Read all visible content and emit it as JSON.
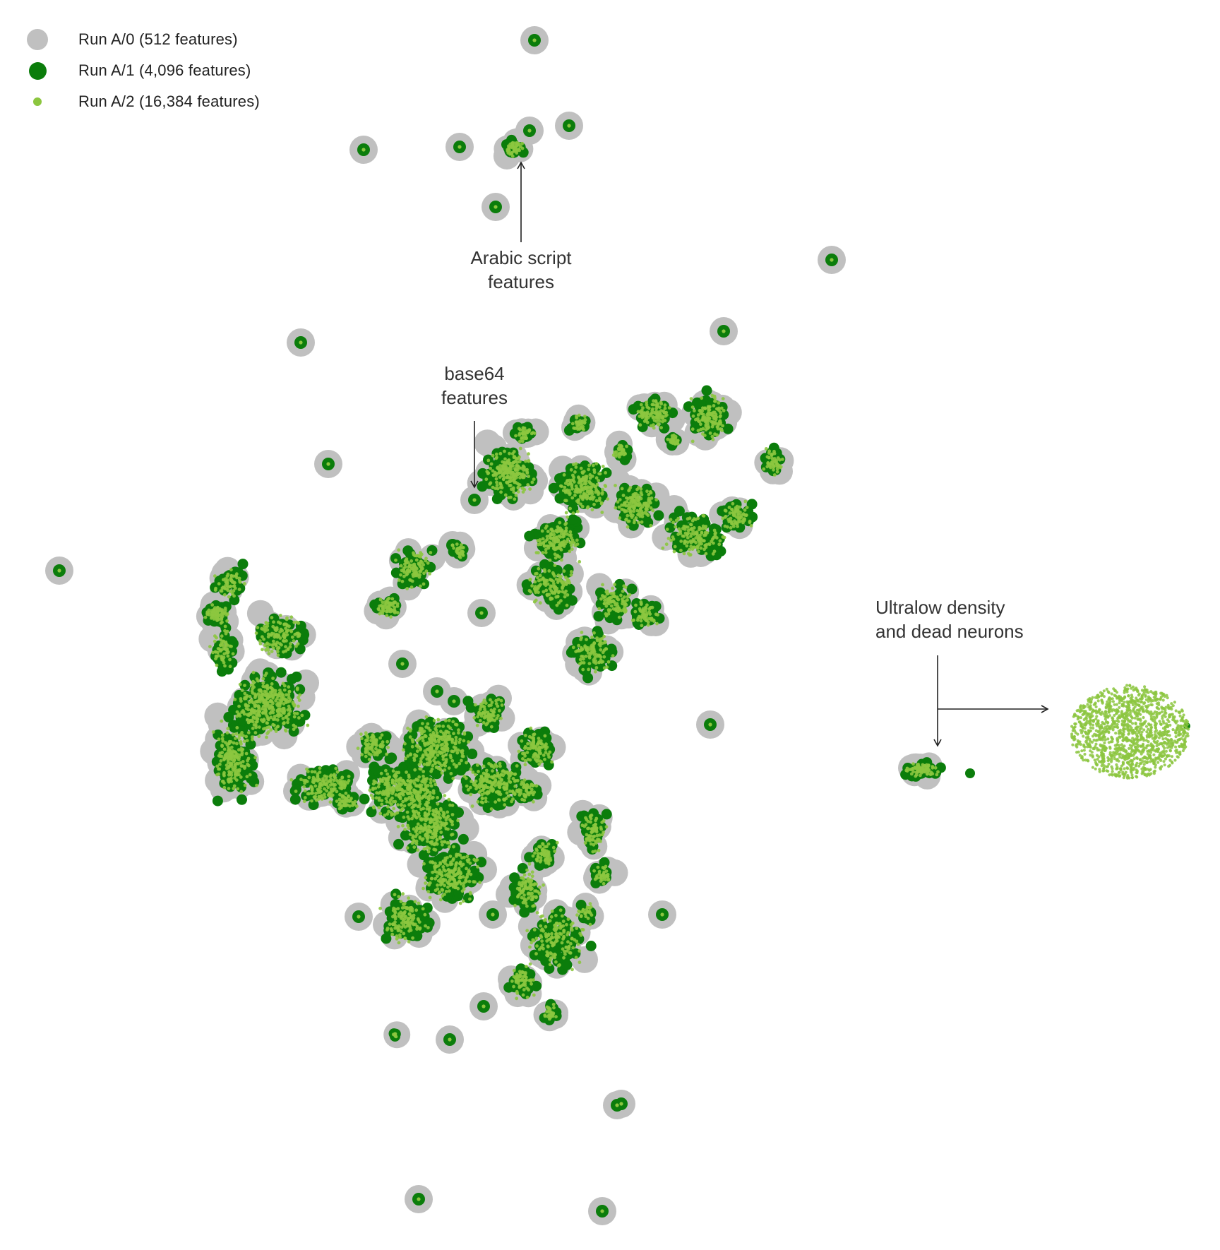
{
  "chart_data": {
    "type": "scatter",
    "title": "",
    "xlabel": "",
    "ylabel": "",
    "grid": false,
    "axes_visible": false,
    "legend_placement": "top-left",
    "series": [
      {
        "name": "Run A/0 (512 features)",
        "color": "#c0c0c0",
        "marker": "large-circle"
      },
      {
        "name": "Run A/1 (4,096 features)",
        "color": "#0b7d0b",
        "marker": "medium-circle"
      },
      {
        "name": "Run A/2 (16,384 features)",
        "color": "#8cc63f",
        "marker": "small-dot"
      }
    ],
    "annotations": [
      {
        "id": "arabic",
        "text": "Arabic script\nfeatures"
      },
      {
        "id": "base64",
        "text": "base64\nfeatures"
      },
      {
        "id": "ultralow",
        "text": "Ultralow density\nand dead neurons"
      }
    ]
  }
}
